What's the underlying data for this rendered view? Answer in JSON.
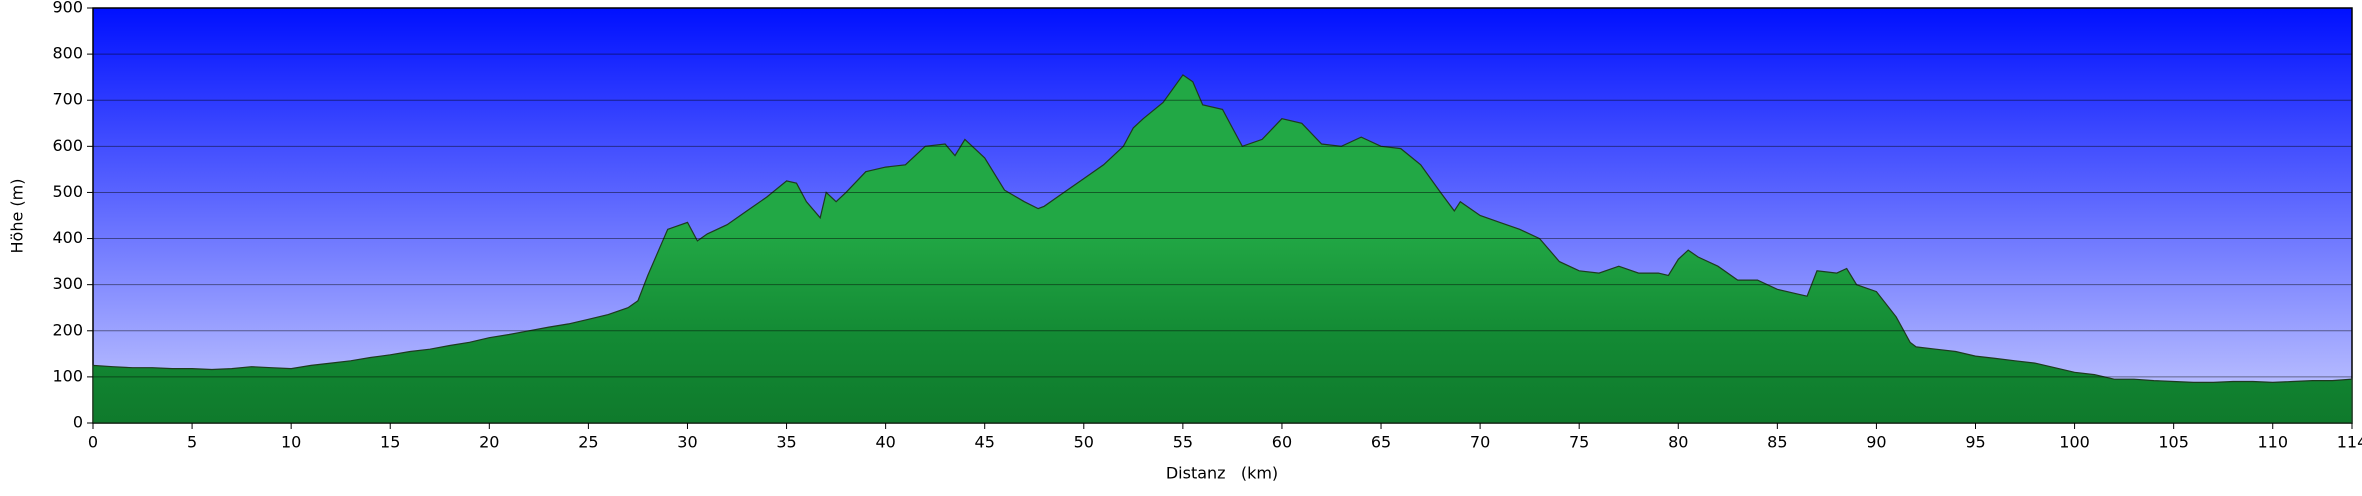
{
  "chart_data": {
    "type": "area",
    "xlabel": "Distanz   (km)",
    "ylabel": "Höhe (m)",
    "x": [
      0,
      1,
      2,
      3,
      4,
      5,
      6,
      7,
      8,
      9,
      10,
      11,
      12,
      13,
      14,
      15,
      16,
      17,
      18,
      19,
      20,
      21,
      22,
      23,
      24,
      25,
      26,
      27,
      27.5,
      28,
      29,
      30,
      30.5,
      31,
      32,
      33,
      34,
      35,
      35.5,
      36,
      36.7,
      37,
      37.5,
      38,
      39,
      40,
      41,
      42,
      43,
      43.5,
      44,
      45,
      46,
      47,
      47.7,
      48,
      49,
      50,
      51,
      52,
      52.5,
      53,
      54,
      55,
      55.5,
      56,
      57,
      57.5,
      58,
      59,
      60,
      61,
      62,
      63,
      64,
      65,
      66,
      67,
      68,
      68.7,
      69,
      70,
      71,
      72,
      73,
      74,
      75,
      76,
      77,
      78,
      79,
      79.5,
      80,
      80.5,
      81,
      82,
      83,
      84,
      85,
      86,
      86.5,
      87,
      88,
      88.5,
      89,
      90,
      91,
      91.7,
      92,
      93,
      94,
      95,
      96,
      97,
      98,
      99,
      100,
      101,
      102,
      103,
      104,
      105,
      106,
      107,
      108,
      109,
      110,
      111,
      112,
      113,
      114
    ],
    "values": [
      125,
      122,
      120,
      120,
      118,
      118,
      116,
      118,
      122,
      120,
      118,
      125,
      130,
      135,
      142,
      148,
      155,
      160,
      168,
      175,
      185,
      192,
      200,
      208,
      215,
      225,
      235,
      250,
      265,
      320,
      420,
      435,
      395,
      410,
      430,
      460,
      490,
      525,
      520,
      480,
      445,
      500,
      480,
      500,
      545,
      555,
      560,
      600,
      605,
      580,
      615,
      575,
      505,
      480,
      465,
      470,
      500,
      530,
      560,
      600,
      640,
      660,
      695,
      755,
      740,
      690,
      680,
      640,
      600,
      615,
      660,
      650,
      605,
      600,
      620,
      600,
      595,
      560,
      500,
      460,
      480,
      450,
      435,
      420,
      400,
      350,
      330,
      325,
      340,
      325,
      325,
      320,
      355,
      375,
      360,
      340,
      310,
      310,
      290,
      280,
      275,
      330,
      325,
      335,
      300,
      285,
      230,
      175,
      165,
      160,
      155,
      145,
      140,
      135,
      130,
      120,
      110,
      105,
      95,
      95,
      92,
      90,
      88,
      88,
      90,
      90,
      88,
      90,
      92,
      92,
      95
    ],
    "color": "#22a845",
    "xlim": [
      0,
      114
    ],
    "ylim": [
      0,
      900
    ],
    "xticks": [
      0,
      5,
      10,
      15,
      20,
      25,
      30,
      35,
      40,
      45,
      50,
      55,
      60,
      65,
      70,
      75,
      80,
      85,
      90,
      95,
      100,
      105,
      110,
      114
    ],
    "yticks": [
      0,
      100,
      200,
      300,
      400,
      500,
      600,
      700,
      800,
      900
    ],
    "grid": true
  }
}
